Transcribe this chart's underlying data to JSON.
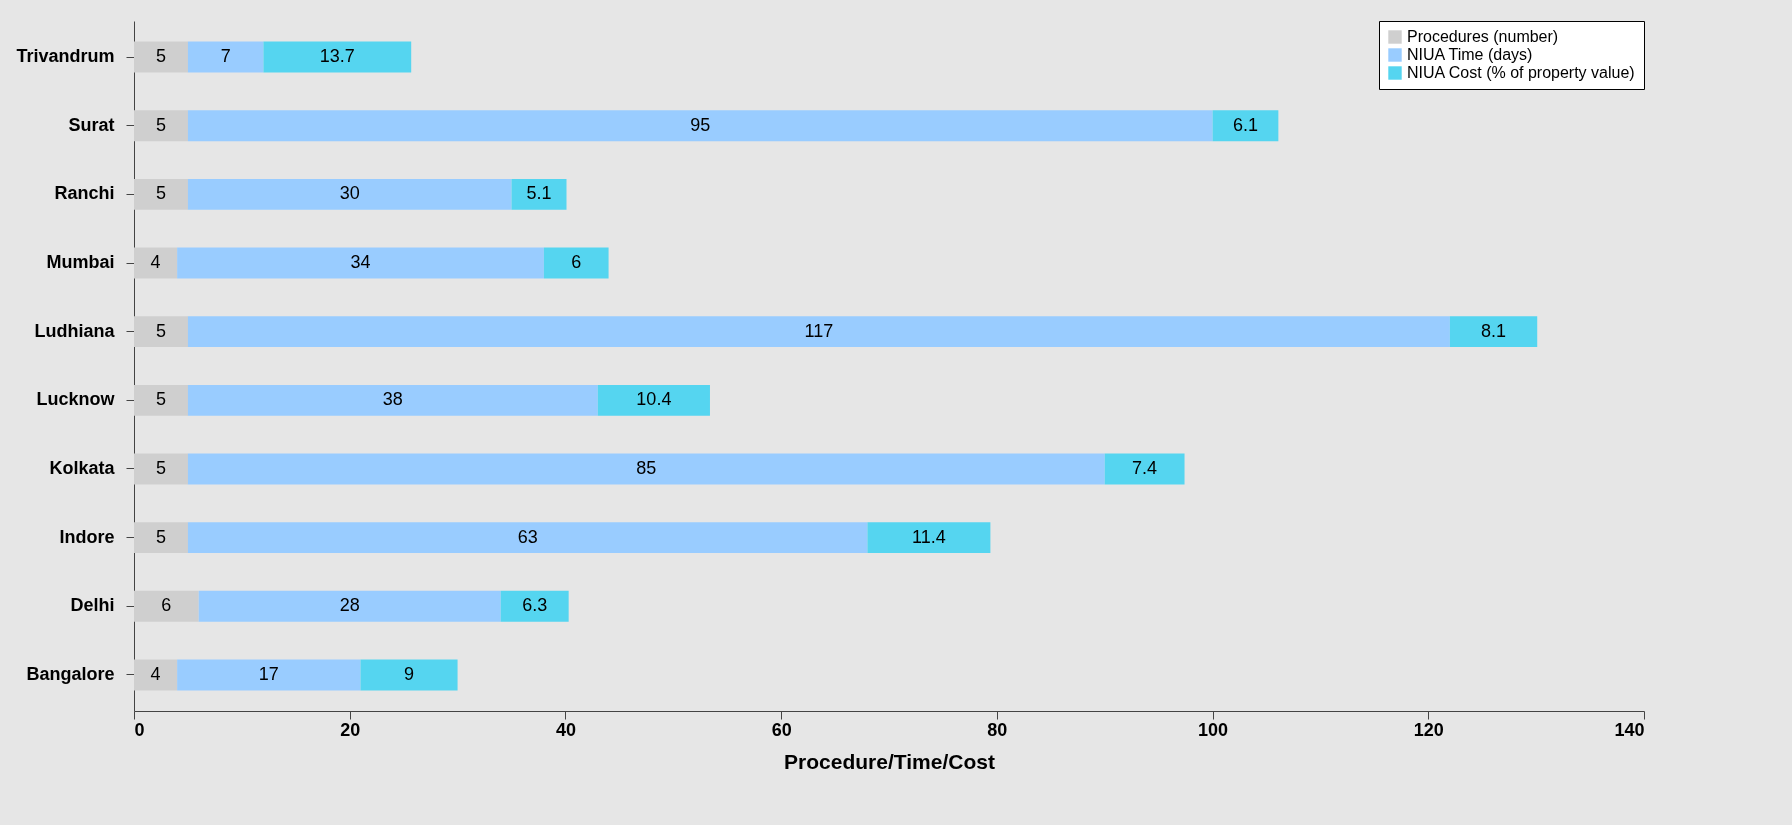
{
  "chart_data": {
    "type": "bar",
    "orientation": "horizontal",
    "stacked": true,
    "data_labels": true,
    "xlabel": "Procedure/Time/Cost",
    "categories": [
      "Trivandrum",
      "Surat",
      "Ranchi",
      "Mumbai",
      "Ludhiana",
      "Lucknow",
      "Kolkata",
      "Indore",
      "Delhi",
      "Bangalore"
    ],
    "series": [
      {
        "name": "Procedures (number)",
        "color": "#cfcfcf",
        "values": [
          5,
          5,
          5,
          4,
          5,
          5,
          5,
          5,
          6,
          4
        ]
      },
      {
        "name": "NIUA Time (days)",
        "color": "#99ccff",
        "values": [
          7,
          95,
          30,
          34,
          117,
          38,
          85,
          63,
          28,
          17
        ]
      },
      {
        "name": "NIUA Cost (% of property value)",
        "color": "#55d5f0",
        "values": [
          13.7,
          6.1,
          5.1,
          6,
          8.1,
          10.4,
          7.4,
          11.4,
          6.3,
          9
        ]
      }
    ],
    "xlim": [
      0,
      140
    ],
    "xticks": [
      0,
      20,
      40,
      60,
      80,
      100,
      120,
      140
    ],
    "grid": false,
    "legend": "top right"
  }
}
